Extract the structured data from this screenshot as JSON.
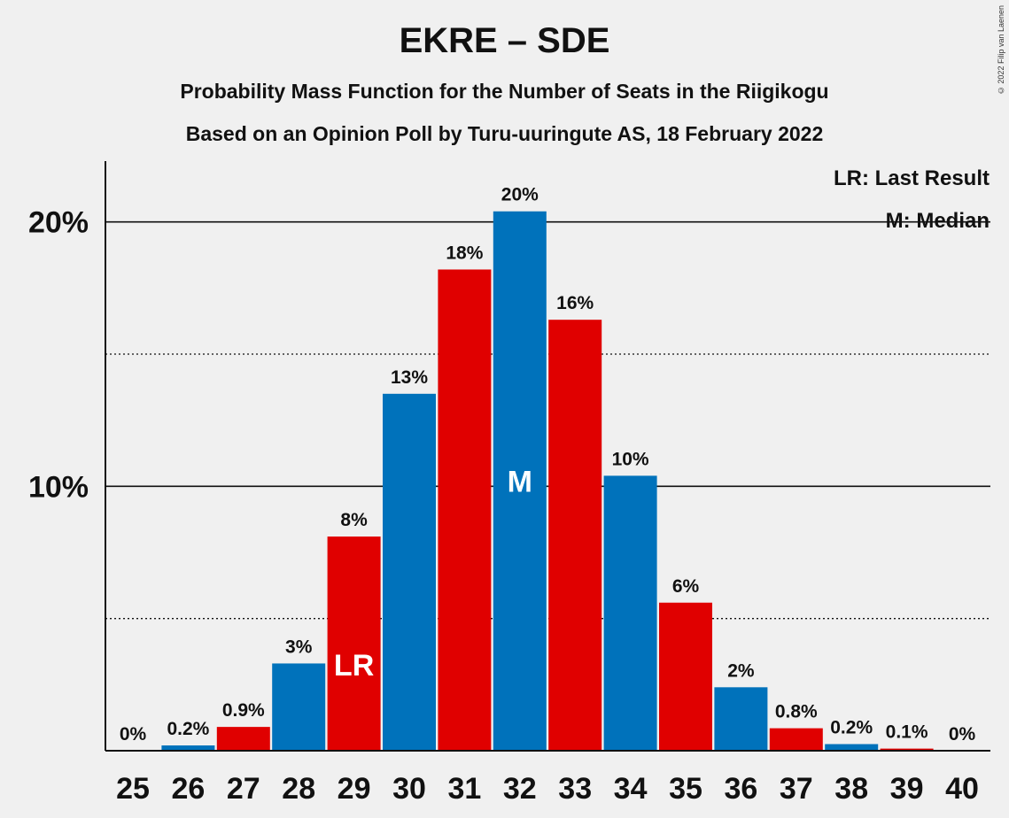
{
  "title": "EKRE – SDE",
  "subtitle1": "Probability Mass Function for the Number of Seats in the Riigikogu",
  "subtitle2": "Based on an Opinion Poll by Turu-uuringute AS, 18 February 2022",
  "copyright": "© 2022 Filip van Laenen",
  "legend": {
    "lr": "LR: Last Result",
    "m": "M: Median"
  },
  "colors": {
    "blue": "#0072bb",
    "red": "#e00000",
    "background": "#f0f0f0",
    "axis": "#111111"
  },
  "chart_data": {
    "type": "bar",
    "categories": [
      "25",
      "26",
      "27",
      "28",
      "29",
      "30",
      "31",
      "32",
      "33",
      "34",
      "35",
      "36",
      "37",
      "38",
      "39",
      "40"
    ],
    "values": [
      0,
      0.2,
      0.9,
      3.3,
      8.1,
      13.5,
      18.2,
      20.4,
      16.3,
      10.4,
      5.6,
      2.4,
      0.85,
      0.25,
      0.08,
      0
    ],
    "value_labels": [
      "0%",
      "0.2%",
      "0.9%",
      "3%",
      "8%",
      "13%",
      "18%",
      "20%",
      "16%",
      "10%",
      "6%",
      "2%",
      "0.8%",
      "0.2%",
      "0.1%",
      "0%"
    ],
    "bar_colors": [
      "blue",
      "blue",
      "red",
      "blue",
      "red",
      "blue",
      "red",
      "blue",
      "red",
      "blue",
      "red",
      "blue",
      "red",
      "blue",
      "red",
      "blue"
    ],
    "markers": {
      "29": "LR",
      "32": "M"
    },
    "ylim": [
      0,
      22.3
    ],
    "yticks": [
      {
        "value": 10,
        "label": "10%"
      },
      {
        "value": 20,
        "label": "20%"
      }
    ],
    "dotted_gridlines": [
      5,
      15
    ],
    "xlabel": "",
    "ylabel": "",
    "legend_placement": "top-right"
  }
}
